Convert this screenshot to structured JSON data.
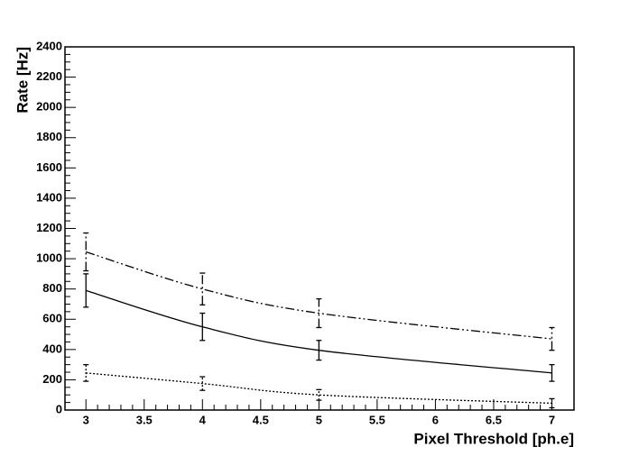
{
  "chart_data": {
    "type": "line",
    "x_label": "Pixel Threshold [ph.e]",
    "y_label": "Rate [Hz]",
    "x": [
      3,
      4,
      5,
      7
    ],
    "series": [
      {
        "color": "#000000",
        "dash": "10 3 2 3 2 3",
        "values": [
          1045,
          800,
          640,
          470
        ],
        "errors": [
          125,
          105,
          95,
          75
        ]
      },
      {
        "color": "#000000",
        "dash": "none",
        "values": [
          790,
          550,
          395,
          245
        ],
        "errors": [
          110,
          90,
          65,
          55
        ]
      },
      {
        "color": "#000000",
        "dash": "2 2",
        "values": [
          245,
          175,
          100,
          45
        ],
        "errors": [
          55,
          45,
          35,
          30
        ]
      }
    ],
    "xlim": [
      2.82,
      7.19
    ],
    "ylim": [
      0,
      2400
    ],
    "xticks": [
      3,
      3.5,
      4,
      4.5,
      5,
      5.5,
      6,
      6.5,
      7
    ],
    "yticks": [
      0,
      200,
      400,
      600,
      800,
      1000,
      1200,
      1400,
      1600,
      1800,
      2000,
      2200,
      2400
    ]
  }
}
